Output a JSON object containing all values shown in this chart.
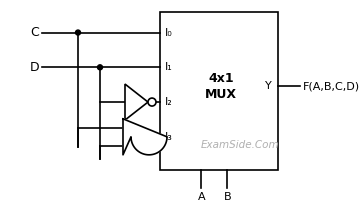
{
  "bg_color": "#ffffff",
  "line_color": "#000000",
  "text_color": "#000000",
  "watermark_color": "#b0b0b0",
  "mux_label_line1": "4x1",
  "mux_label_line2": "MUX",
  "output_label": "Y",
  "func_label": "F(A,B,C,D)",
  "input_labels": [
    "I₀",
    "I₁",
    "I₂",
    "I₃"
  ],
  "input_C": "C",
  "input_D": "D",
  "select_A": "A",
  "select_B": "B",
  "watermark": "ExamSide.Com",
  "figsize": [
    3.59,
    2.12
  ],
  "dpi": 100
}
